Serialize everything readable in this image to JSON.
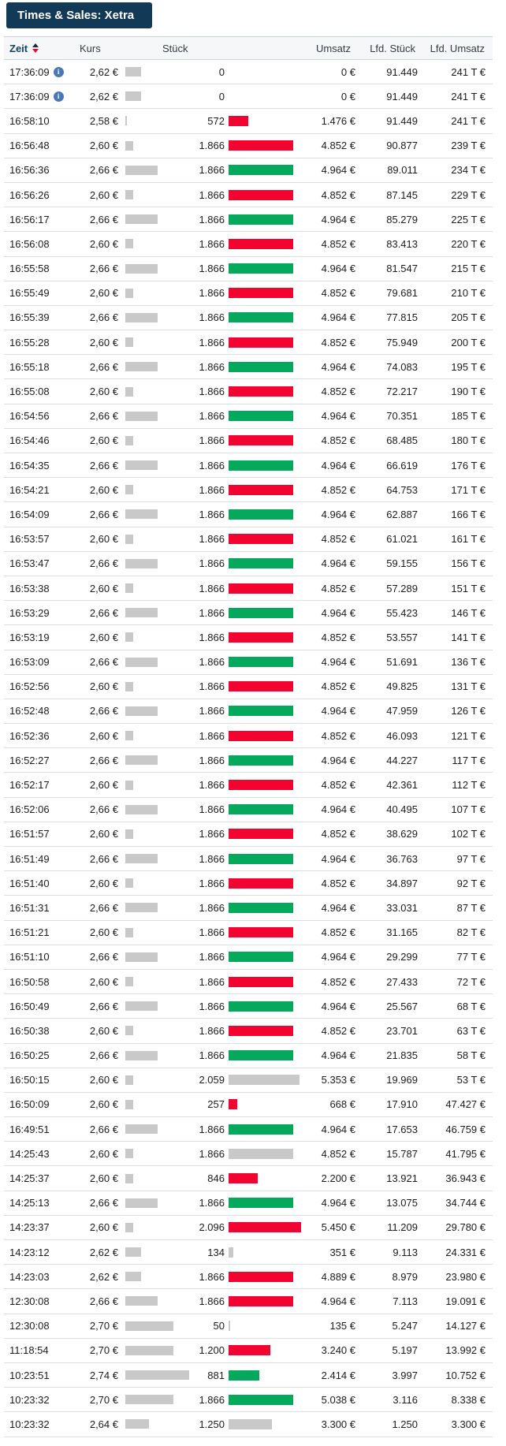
{
  "panel": {
    "title": "Times & Sales: Xetra"
  },
  "colors": {
    "accent_navy": "#123a56",
    "up_green": "#04a95c",
    "down_red": "#f3032f",
    "neutral_gray": "#c9c9c9",
    "info_blue": "#4878b8",
    "sort_arrow_dark": "#1c2733",
    "sort_arrow_red": "#f3032f"
  },
  "icons": {
    "sort": "sort-asc-desc-triangles",
    "info": "info-circle"
  },
  "table": {
    "headers": {
      "zeit": "Zeit",
      "kurs": "Kurs",
      "stueck": "Stück",
      "umsatz": "Umsatz",
      "lfd_stueck": "Lfd. Stück",
      "lfd_umsatz": "Lfd. Umsatz"
    },
    "price_axis": {
      "min": 2.58,
      "max": 2.74
    },
    "volume_axis": {
      "max": 2096
    },
    "rows": [
      {
        "zeit": "17:36:09",
        "info": true,
        "kurs": "2,62 €",
        "price": 2.62,
        "stueck": "0",
        "volume": 0,
        "tick": "none",
        "umsatz": "0 €",
        "lfd_stueck": "91.449",
        "lfd_umsatz": "241 T €"
      },
      {
        "zeit": "17:36:09",
        "info": true,
        "kurs": "2,62 €",
        "price": 2.62,
        "stueck": "0",
        "volume": 0,
        "tick": "none",
        "umsatz": "0 €",
        "lfd_stueck": "91.449",
        "lfd_umsatz": "241 T €"
      },
      {
        "zeit": "16:58:10",
        "info": false,
        "kurs": "2,58 €",
        "price": 2.58,
        "stueck": "572",
        "volume": 572,
        "tick": "down",
        "umsatz": "1.476 €",
        "lfd_stueck": "91.449",
        "lfd_umsatz": "241 T €"
      },
      {
        "zeit": "16:56:48",
        "info": false,
        "kurs": "2,60 €",
        "price": 2.6,
        "stueck": "1.866",
        "volume": 1866,
        "tick": "down",
        "umsatz": "4.852 €",
        "lfd_stueck": "90.877",
        "lfd_umsatz": "239 T €"
      },
      {
        "zeit": "16:56:36",
        "info": false,
        "kurs": "2,66 €",
        "price": 2.66,
        "stueck": "1.866",
        "volume": 1866,
        "tick": "up",
        "umsatz": "4.964 €",
        "lfd_stueck": "89.011",
        "lfd_umsatz": "234 T €"
      },
      {
        "zeit": "16:56:26",
        "info": false,
        "kurs": "2,60 €",
        "price": 2.6,
        "stueck": "1.866",
        "volume": 1866,
        "tick": "down",
        "umsatz": "4.852 €",
        "lfd_stueck": "87.145",
        "lfd_umsatz": "229 T €"
      },
      {
        "zeit": "16:56:17",
        "info": false,
        "kurs": "2,66 €",
        "price": 2.66,
        "stueck": "1.866",
        "volume": 1866,
        "tick": "up",
        "umsatz": "4.964 €",
        "lfd_stueck": "85.279",
        "lfd_umsatz": "225 T €"
      },
      {
        "zeit": "16:56:08",
        "info": false,
        "kurs": "2,60 €",
        "price": 2.6,
        "stueck": "1.866",
        "volume": 1866,
        "tick": "down",
        "umsatz": "4.852 €",
        "lfd_stueck": "83.413",
        "lfd_umsatz": "220 T €"
      },
      {
        "zeit": "16:55:58",
        "info": false,
        "kurs": "2,66 €",
        "price": 2.66,
        "stueck": "1.866",
        "volume": 1866,
        "tick": "up",
        "umsatz": "4.964 €",
        "lfd_stueck": "81.547",
        "lfd_umsatz": "215 T €"
      },
      {
        "zeit": "16:55:49",
        "info": false,
        "kurs": "2,60 €",
        "price": 2.6,
        "stueck": "1.866",
        "volume": 1866,
        "tick": "down",
        "umsatz": "4.852 €",
        "lfd_stueck": "79.681",
        "lfd_umsatz": "210 T €"
      },
      {
        "zeit": "16:55:39",
        "info": false,
        "kurs": "2,66 €",
        "price": 2.66,
        "stueck": "1.866",
        "volume": 1866,
        "tick": "up",
        "umsatz": "4.964 €",
        "lfd_stueck": "77.815",
        "lfd_umsatz": "205 T €"
      },
      {
        "zeit": "16:55:28",
        "info": false,
        "kurs": "2,60 €",
        "price": 2.6,
        "stueck": "1.866",
        "volume": 1866,
        "tick": "down",
        "umsatz": "4.852 €",
        "lfd_stueck": "75.949",
        "lfd_umsatz": "200 T €"
      },
      {
        "zeit": "16:55:18",
        "info": false,
        "kurs": "2,66 €",
        "price": 2.66,
        "stueck": "1.866",
        "volume": 1866,
        "tick": "up",
        "umsatz": "4.964 €",
        "lfd_stueck": "74.083",
        "lfd_umsatz": "195 T €"
      },
      {
        "zeit": "16:55:08",
        "info": false,
        "kurs": "2,60 €",
        "price": 2.6,
        "stueck": "1.866",
        "volume": 1866,
        "tick": "down",
        "umsatz": "4.852 €",
        "lfd_stueck": "72.217",
        "lfd_umsatz": "190 T €"
      },
      {
        "zeit": "16:54:56",
        "info": false,
        "kurs": "2,66 €",
        "price": 2.66,
        "stueck": "1.866",
        "volume": 1866,
        "tick": "up",
        "umsatz": "4.964 €",
        "lfd_stueck": "70.351",
        "lfd_umsatz": "185 T €"
      },
      {
        "zeit": "16:54:46",
        "info": false,
        "kurs": "2,60 €",
        "price": 2.6,
        "stueck": "1.866",
        "volume": 1866,
        "tick": "down",
        "umsatz": "4.852 €",
        "lfd_stueck": "68.485",
        "lfd_umsatz": "180 T €"
      },
      {
        "zeit": "16:54:35",
        "info": false,
        "kurs": "2,66 €",
        "price": 2.66,
        "stueck": "1.866",
        "volume": 1866,
        "tick": "up",
        "umsatz": "4.964 €",
        "lfd_stueck": "66.619",
        "lfd_umsatz": "176 T €"
      },
      {
        "zeit": "16:54:21",
        "info": false,
        "kurs": "2,60 €",
        "price": 2.6,
        "stueck": "1.866",
        "volume": 1866,
        "tick": "down",
        "umsatz": "4.852 €",
        "lfd_stueck": "64.753",
        "lfd_umsatz": "171 T €"
      },
      {
        "zeit": "16:54:09",
        "info": false,
        "kurs": "2,66 €",
        "price": 2.66,
        "stueck": "1.866",
        "volume": 1866,
        "tick": "up",
        "umsatz": "4.964 €",
        "lfd_stueck": "62.887",
        "lfd_umsatz": "166 T €"
      },
      {
        "zeit": "16:53:57",
        "info": false,
        "kurs": "2,60 €",
        "price": 2.6,
        "stueck": "1.866",
        "volume": 1866,
        "tick": "down",
        "umsatz": "4.852 €",
        "lfd_stueck": "61.021",
        "lfd_umsatz": "161 T €"
      },
      {
        "zeit": "16:53:47",
        "info": false,
        "kurs": "2,66 €",
        "price": 2.66,
        "stueck": "1.866",
        "volume": 1866,
        "tick": "up",
        "umsatz": "4.964 €",
        "lfd_stueck": "59.155",
        "lfd_umsatz": "156 T €"
      },
      {
        "zeit": "16:53:38",
        "info": false,
        "kurs": "2,60 €",
        "price": 2.6,
        "stueck": "1.866",
        "volume": 1866,
        "tick": "down",
        "umsatz": "4.852 €",
        "lfd_stueck": "57.289",
        "lfd_umsatz": "151 T €"
      },
      {
        "zeit": "16:53:29",
        "info": false,
        "kurs": "2,66 €",
        "price": 2.66,
        "stueck": "1.866",
        "volume": 1866,
        "tick": "up",
        "umsatz": "4.964 €",
        "lfd_stueck": "55.423",
        "lfd_umsatz": "146 T €"
      },
      {
        "zeit": "16:53:19",
        "info": false,
        "kurs": "2,60 €",
        "price": 2.6,
        "stueck": "1.866",
        "volume": 1866,
        "tick": "down",
        "umsatz": "4.852 €",
        "lfd_stueck": "53.557",
        "lfd_umsatz": "141 T €"
      },
      {
        "zeit": "16:53:09",
        "info": false,
        "kurs": "2,66 €",
        "price": 2.66,
        "stueck": "1.866",
        "volume": 1866,
        "tick": "up",
        "umsatz": "4.964 €",
        "lfd_stueck": "51.691",
        "lfd_umsatz": "136 T €"
      },
      {
        "zeit": "16:52:56",
        "info": false,
        "kurs": "2,60 €",
        "price": 2.6,
        "stueck": "1.866",
        "volume": 1866,
        "tick": "down",
        "umsatz": "4.852 €",
        "lfd_stueck": "49.825",
        "lfd_umsatz": "131 T €"
      },
      {
        "zeit": "16:52:48",
        "info": false,
        "kurs": "2,66 €",
        "price": 2.66,
        "stueck": "1.866",
        "volume": 1866,
        "tick": "up",
        "umsatz": "4.964 €",
        "lfd_stueck": "47.959",
        "lfd_umsatz": "126 T €"
      },
      {
        "zeit": "16:52:36",
        "info": false,
        "kurs": "2,60 €",
        "price": 2.6,
        "stueck": "1.866",
        "volume": 1866,
        "tick": "down",
        "umsatz": "4.852 €",
        "lfd_stueck": "46.093",
        "lfd_umsatz": "121 T €"
      },
      {
        "zeit": "16:52:27",
        "info": false,
        "kurs": "2,66 €",
        "price": 2.66,
        "stueck": "1.866",
        "volume": 1866,
        "tick": "up",
        "umsatz": "4.964 €",
        "lfd_stueck": "44.227",
        "lfd_umsatz": "117 T €"
      },
      {
        "zeit": "16:52:17",
        "info": false,
        "kurs": "2,60 €",
        "price": 2.6,
        "stueck": "1.866",
        "volume": 1866,
        "tick": "down",
        "umsatz": "4.852 €",
        "lfd_stueck": "42.361",
        "lfd_umsatz": "112 T €"
      },
      {
        "zeit": "16:52:06",
        "info": false,
        "kurs": "2,66 €",
        "price": 2.66,
        "stueck": "1.866",
        "volume": 1866,
        "tick": "up",
        "umsatz": "4.964 €",
        "lfd_stueck": "40.495",
        "lfd_umsatz": "107 T €"
      },
      {
        "zeit": "16:51:57",
        "info": false,
        "kurs": "2,60 €",
        "price": 2.6,
        "stueck": "1.866",
        "volume": 1866,
        "tick": "down",
        "umsatz": "4.852 €",
        "lfd_stueck": "38.629",
        "lfd_umsatz": "102 T €"
      },
      {
        "zeit": "16:51:49",
        "info": false,
        "kurs": "2,66 €",
        "price": 2.66,
        "stueck": "1.866",
        "volume": 1866,
        "tick": "up",
        "umsatz": "4.964 €",
        "lfd_stueck": "36.763",
        "lfd_umsatz": "97 T €"
      },
      {
        "zeit": "16:51:40",
        "info": false,
        "kurs": "2,60 €",
        "price": 2.6,
        "stueck": "1.866",
        "volume": 1866,
        "tick": "down",
        "umsatz": "4.852 €",
        "lfd_stueck": "34.897",
        "lfd_umsatz": "92 T €"
      },
      {
        "zeit": "16:51:31",
        "info": false,
        "kurs": "2,66 €",
        "price": 2.66,
        "stueck": "1.866",
        "volume": 1866,
        "tick": "up",
        "umsatz": "4.964 €",
        "lfd_stueck": "33.031",
        "lfd_umsatz": "87 T €"
      },
      {
        "zeit": "16:51:21",
        "info": false,
        "kurs": "2,60 €",
        "price": 2.6,
        "stueck": "1.866",
        "volume": 1866,
        "tick": "down",
        "umsatz": "4.852 €",
        "lfd_stueck": "31.165",
        "lfd_umsatz": "82 T €"
      },
      {
        "zeit": "16:51:10",
        "info": false,
        "kurs": "2,66 €",
        "price": 2.66,
        "stueck": "1.866",
        "volume": 1866,
        "tick": "up",
        "umsatz": "4.964 €",
        "lfd_stueck": "29.299",
        "lfd_umsatz": "77 T €"
      },
      {
        "zeit": "16:50:58",
        "info": false,
        "kurs": "2,60 €",
        "price": 2.6,
        "stueck": "1.866",
        "volume": 1866,
        "tick": "down",
        "umsatz": "4.852 €",
        "lfd_stueck": "27.433",
        "lfd_umsatz": "72 T €"
      },
      {
        "zeit": "16:50:49",
        "info": false,
        "kurs": "2,66 €",
        "price": 2.66,
        "stueck": "1.866",
        "volume": 1866,
        "tick": "up",
        "umsatz": "4.964 €",
        "lfd_stueck": "25.567",
        "lfd_umsatz": "68 T €"
      },
      {
        "zeit": "16:50:38",
        "info": false,
        "kurs": "2,60 €",
        "price": 2.6,
        "stueck": "1.866",
        "volume": 1866,
        "tick": "down",
        "umsatz": "4.852 €",
        "lfd_stueck": "23.701",
        "lfd_umsatz": "63 T €"
      },
      {
        "zeit": "16:50:25",
        "info": false,
        "kurs": "2,66 €",
        "price": 2.66,
        "stueck": "1.866",
        "volume": 1866,
        "tick": "up",
        "umsatz": "4.964 €",
        "lfd_stueck": "21.835",
        "lfd_umsatz": "58 T €"
      },
      {
        "zeit": "16:50:15",
        "info": false,
        "kurs": "2,60 €",
        "price": 2.6,
        "stueck": "2.059",
        "volume": 2059,
        "tick": "neutral",
        "umsatz": "5.353 €",
        "lfd_stueck": "19.969",
        "lfd_umsatz": "53 T €"
      },
      {
        "zeit": "16:50:09",
        "info": false,
        "kurs": "2,60 €",
        "price": 2.6,
        "stueck": "257",
        "volume": 257,
        "tick": "down",
        "umsatz": "668 €",
        "lfd_stueck": "17.910",
        "lfd_umsatz": "47.427 €"
      },
      {
        "zeit": "16:49:51",
        "info": false,
        "kurs": "2,66 €",
        "price": 2.66,
        "stueck": "1.866",
        "volume": 1866,
        "tick": "up",
        "umsatz": "4.964 €",
        "lfd_stueck": "17.653",
        "lfd_umsatz": "46.759 €"
      },
      {
        "zeit": "14:25:43",
        "info": false,
        "kurs": "2,60 €",
        "price": 2.6,
        "stueck": "1.866",
        "volume": 1866,
        "tick": "neutral",
        "umsatz": "4.852 €",
        "lfd_stueck": "15.787",
        "lfd_umsatz": "41.795 €"
      },
      {
        "zeit": "14:25:37",
        "info": false,
        "kurs": "2,60 €",
        "price": 2.6,
        "stueck": "846",
        "volume": 846,
        "tick": "down",
        "umsatz": "2.200 €",
        "lfd_stueck": "13.921",
        "lfd_umsatz": "36.943 €"
      },
      {
        "zeit": "14:25:13",
        "info": false,
        "kurs": "2,66 €",
        "price": 2.66,
        "stueck": "1.866",
        "volume": 1866,
        "tick": "up",
        "umsatz": "4.964 €",
        "lfd_stueck": "13.075",
        "lfd_umsatz": "34.744 €"
      },
      {
        "zeit": "14:23:37",
        "info": false,
        "kurs": "2,60 €",
        "price": 2.6,
        "stueck": "2.096",
        "volume": 2096,
        "tick": "down",
        "umsatz": "5.450 €",
        "lfd_stueck": "11.209",
        "lfd_umsatz": "29.780 €"
      },
      {
        "zeit": "14:23:12",
        "info": false,
        "kurs": "2,62 €",
        "price": 2.62,
        "stueck": "134",
        "volume": 134,
        "tick": "neutral",
        "umsatz": "351 €",
        "lfd_stueck": "9.113",
        "lfd_umsatz": "24.331 €"
      },
      {
        "zeit": "14:23:03",
        "info": false,
        "kurs": "2,62 €",
        "price": 2.62,
        "stueck": "1.866",
        "volume": 1866,
        "tick": "down",
        "umsatz": "4.889 €",
        "lfd_stueck": "8.979",
        "lfd_umsatz": "23.980 €"
      },
      {
        "zeit": "12:30:08",
        "info": false,
        "kurs": "2,66 €",
        "price": 2.66,
        "stueck": "1.866",
        "volume": 1866,
        "tick": "down",
        "umsatz": "4.964 €",
        "lfd_stueck": "7.113",
        "lfd_umsatz": "19.091 €"
      },
      {
        "zeit": "12:30:08",
        "info": false,
        "kurs": "2,70 €",
        "price": 2.7,
        "stueck": "50",
        "volume": 50,
        "tick": "neutral",
        "umsatz": "135 €",
        "lfd_stueck": "5.247",
        "lfd_umsatz": "14.127 €"
      },
      {
        "zeit": "11:18:54",
        "info": false,
        "kurs": "2,70 €",
        "price": 2.7,
        "stueck": "1.200",
        "volume": 1200,
        "tick": "down",
        "umsatz": "3.240 €",
        "lfd_stueck": "5.197",
        "lfd_umsatz": "13.992 €"
      },
      {
        "zeit": "10:23:51",
        "info": false,
        "kurs": "2,74 €",
        "price": 2.74,
        "stueck": "881",
        "volume": 881,
        "tick": "up",
        "umsatz": "2.414 €",
        "lfd_stueck": "3.997",
        "lfd_umsatz": "10.752 €"
      },
      {
        "zeit": "10:23:32",
        "info": false,
        "kurs": "2,70 €",
        "price": 2.7,
        "stueck": "1.866",
        "volume": 1866,
        "tick": "up",
        "umsatz": "5.038 €",
        "lfd_stueck": "3.116",
        "lfd_umsatz": "8.338 €"
      },
      {
        "zeit": "10:23:32",
        "info": false,
        "kurs": "2,64 €",
        "price": 2.64,
        "stueck": "1.250",
        "volume": 1250,
        "tick": "neutral",
        "umsatz": "3.300 €",
        "lfd_stueck": "1.250",
        "lfd_umsatz": "3.300 €"
      }
    ]
  }
}
